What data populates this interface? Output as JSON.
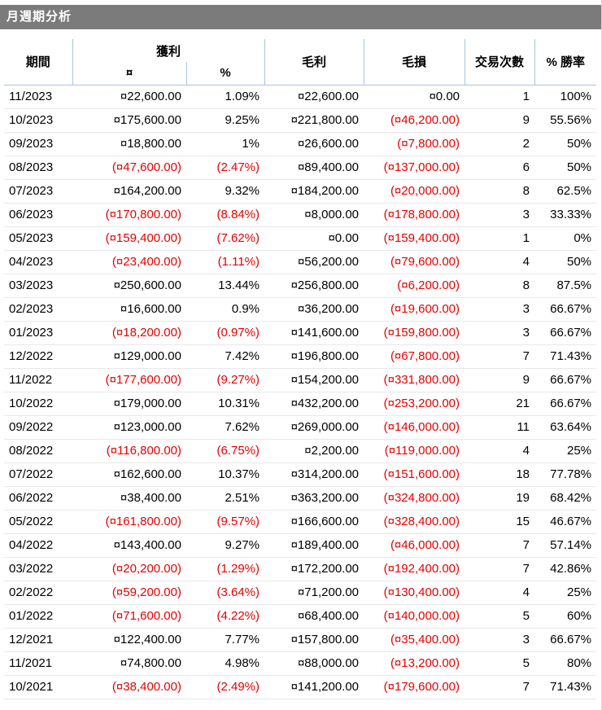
{
  "title": "月週期分析",
  "table": {
    "headers": {
      "period": "期間",
      "profit": "獲利",
      "profit_currency": "¤",
      "profit_percent": "%",
      "gross_profit": "毛利",
      "gross_loss": "毛損",
      "trades": "交易次數",
      "win_rate": "% 勝率"
    },
    "fields": [
      "period",
      "profit",
      "profit_pct",
      "gross_profit",
      "gross_loss",
      "trades",
      "win_rate"
    ],
    "rows": [
      [
        "11/2023",
        "¤22,600.00",
        "1.09%",
        "¤22,600.00",
        "¤0.00",
        "1",
        "100%"
      ],
      [
        "10/2023",
        "¤175,600.00",
        "9.25%",
        "¤221,800.00",
        "(¤46,200.00)",
        "9",
        "55.56%"
      ],
      [
        "09/2023",
        "¤18,800.00",
        "1%",
        "¤26,600.00",
        "(¤7,800.00)",
        "2",
        "50%"
      ],
      [
        "08/2023",
        "(¤47,600.00)",
        "(2.47%)",
        "¤89,400.00",
        "(¤137,000.00)",
        "6",
        "50%"
      ],
      [
        "07/2023",
        "¤164,200.00",
        "9.32%",
        "¤184,200.00",
        "(¤20,000.00)",
        "8",
        "62.5%"
      ],
      [
        "06/2023",
        "(¤170,800.00)",
        "(8.84%)",
        "¤8,000.00",
        "(¤178,800.00)",
        "3",
        "33.33%"
      ],
      [
        "05/2023",
        "(¤159,400.00)",
        "(7.62%)",
        "¤0.00",
        "(¤159,400.00)",
        "1",
        "0%"
      ],
      [
        "04/2023",
        "(¤23,400.00)",
        "(1.11%)",
        "¤56,200.00",
        "(¤79,600.00)",
        "4",
        "50%"
      ],
      [
        "03/2023",
        "¤250,600.00",
        "13.44%",
        "¤256,800.00",
        "(¤6,200.00)",
        "8",
        "87.5%"
      ],
      [
        "02/2023",
        "¤16,600.00",
        "0.9%",
        "¤36,200.00",
        "(¤19,600.00)",
        "3",
        "66.67%"
      ],
      [
        "01/2023",
        "(¤18,200.00)",
        "(0.97%)",
        "¤141,600.00",
        "(¤159,800.00)",
        "3",
        "66.67%"
      ],
      [
        "12/2022",
        "¤129,000.00",
        "7.42%",
        "¤196,800.00",
        "(¤67,800.00)",
        "7",
        "71.43%"
      ],
      [
        "11/2022",
        "(¤177,600.00)",
        "(9.27%)",
        "¤154,200.00",
        "(¤331,800.00)",
        "9",
        "66.67%"
      ],
      [
        "10/2022",
        "¤179,000.00",
        "10.31%",
        "¤432,200.00",
        "(¤253,200.00)",
        "21",
        "66.67%"
      ],
      [
        "09/2022",
        "¤123,000.00",
        "7.62%",
        "¤269,000.00",
        "(¤146,000.00)",
        "11",
        "63.64%"
      ],
      [
        "08/2022",
        "(¤116,800.00)",
        "(6.75%)",
        "¤2,200.00",
        "(¤119,000.00)",
        "4",
        "25%"
      ],
      [
        "07/2022",
        "¤162,600.00",
        "10.37%",
        "¤314,200.00",
        "(¤151,600.00)",
        "18",
        "77.78%"
      ],
      [
        "06/2022",
        "¤38,400.00",
        "2.51%",
        "¤363,200.00",
        "(¤324,800.00)",
        "19",
        "68.42%"
      ],
      [
        "05/2022",
        "(¤161,800.00)",
        "(9.57%)",
        "¤166,600.00",
        "(¤328,400.00)",
        "15",
        "46.67%"
      ],
      [
        "04/2022",
        "¤143,400.00",
        "9.27%",
        "¤189,400.00",
        "(¤46,000.00)",
        "7",
        "57.14%"
      ],
      [
        "03/2022",
        "(¤20,200.00)",
        "(1.29%)",
        "¤172,200.00",
        "(¤192,400.00)",
        "7",
        "42.86%"
      ],
      [
        "02/2022",
        "(¤59,200.00)",
        "(3.64%)",
        "¤71,200.00",
        "(¤130,400.00)",
        "4",
        "25%"
      ],
      [
        "01/2022",
        "(¤71,600.00)",
        "(4.22%)",
        "¤68,400.00",
        "(¤140,000.00)",
        "5",
        "60%"
      ],
      [
        "12/2021",
        "¤122,400.00",
        "7.77%",
        "¤157,800.00",
        "(¤35,400.00)",
        "3",
        "66.67%"
      ],
      [
        "11/2021",
        "¤74,800.00",
        "4.98%",
        "¤88,000.00",
        "(¤13,200.00)",
        "5",
        "80%"
      ],
      [
        "10/2021",
        "(¤38,400.00)",
        "(2.49%)",
        "¤141,200.00",
        "(¤179,600.00)",
        "7",
        "71.43%"
      ]
    ]
  },
  "colors": {
    "title_bar_bg": "#7b7b7b",
    "title_text": "#ffffff",
    "negative": "#e60000",
    "text": "#000000",
    "header_border": "#a9c3de",
    "row_border": "#e8e8e8",
    "background": "#ffffff"
  }
}
